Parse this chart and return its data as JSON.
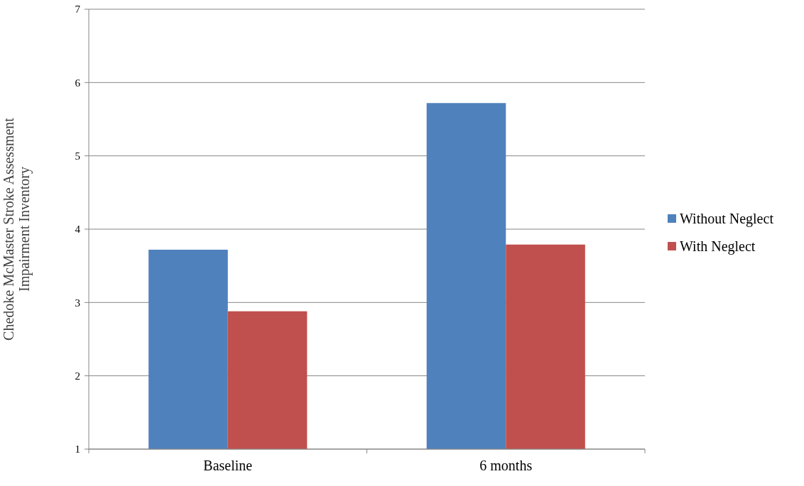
{
  "chart_data": {
    "type": "bar",
    "ylabel": "Chedoke McMaster Stroke Assessment\nImpairment Inventory",
    "categories": [
      "Baseline",
      "6 months"
    ],
    "series": [
      {
        "name": "Without Neglect",
        "color": "#4f81bd",
        "values": [
          3.72,
          5.72
        ]
      },
      {
        "name": "With Neglect",
        "color": "#c0504d",
        "values": [
          2.88,
          3.79
        ]
      }
    ],
    "ylim": [
      1,
      7
    ],
    "yticks": [
      1,
      2,
      3,
      4,
      5,
      6,
      7
    ],
    "grid": "y",
    "legend": "right"
  }
}
